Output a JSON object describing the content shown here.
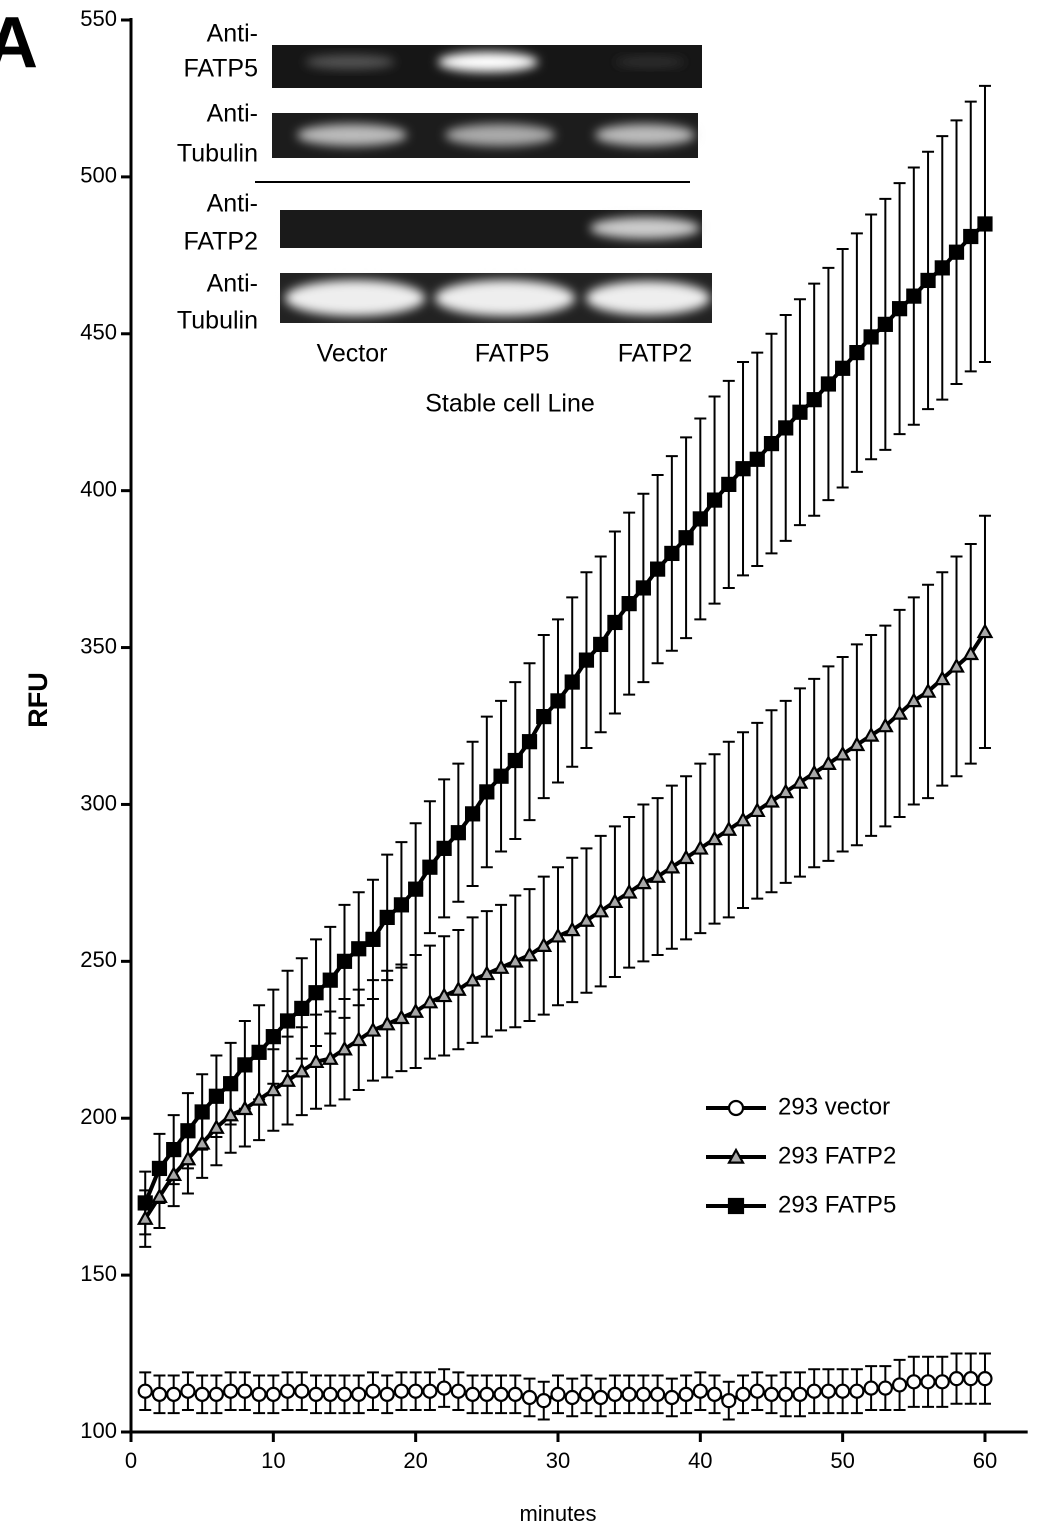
{
  "panel_label": "A",
  "chart_data": {
    "type": "line",
    "xlabel": "minutes",
    "ylabel": "RFU",
    "xlim": [
      0,
      63
    ],
    "ylim": [
      100,
      550
    ],
    "xticks": [
      0,
      10,
      20,
      30,
      40,
      50,
      60
    ],
    "yticks": [
      100,
      150,
      200,
      250,
      300,
      350,
      400,
      450,
      500,
      550
    ],
    "legend": "right",
    "x": [
      1,
      2,
      3,
      4,
      5,
      6,
      7,
      8,
      9,
      10,
      11,
      12,
      13,
      14,
      15,
      16,
      17,
      18,
      19,
      20,
      21,
      22,
      23,
      24,
      25,
      26,
      27,
      28,
      29,
      30,
      31,
      32,
      33,
      34,
      35,
      36,
      37,
      38,
      39,
      40,
      41,
      42,
      43,
      44,
      45,
      46,
      47,
      48,
      49,
      50,
      51,
      52,
      53,
      54,
      55,
      56,
      57,
      58,
      59,
      60
    ],
    "series": [
      {
        "name": "293 vector",
        "marker": "circle",
        "color": "#000000",
        "marker_fill": "#ffffff",
        "values": [
          113,
          112,
          112,
          113,
          112,
          112,
          113,
          113,
          112,
          112,
          113,
          113,
          112,
          112,
          112,
          112,
          113,
          112,
          113,
          113,
          113,
          114,
          113,
          112,
          112,
          112,
          112,
          111,
          110,
          112,
          111,
          112,
          111,
          112,
          112,
          112,
          112,
          111,
          112,
          113,
          112,
          110,
          112,
          113,
          112,
          112,
          112,
          113,
          113,
          113,
          113,
          114,
          114,
          115,
          116,
          116,
          116,
          117,
          117,
          117
        ],
        "errors": [
          6,
          6,
          6,
          6,
          6,
          6,
          6,
          6,
          6,
          6,
          6,
          6,
          6,
          6,
          6,
          6,
          6,
          6,
          6,
          6,
          6,
          6,
          6,
          6,
          6,
          6,
          6,
          6,
          6,
          6,
          6,
          6,
          6,
          6,
          6,
          6,
          6,
          6,
          6,
          6,
          6,
          6,
          6,
          6,
          6,
          7,
          7,
          7,
          7,
          7,
          7,
          7,
          7,
          8,
          8,
          8,
          8,
          8,
          8,
          8
        ]
      },
      {
        "name": "293 FATP2",
        "marker": "triangle",
        "color": "#000000",
        "marker_fill": "#a8a8a8",
        "values": [
          168,
          175,
          182,
          187,
          192,
          197,
          201,
          203,
          206,
          209,
          212,
          215,
          218,
          219,
          222,
          225,
          228,
          230,
          232,
          234,
          237,
          239,
          241,
          244,
          246,
          248,
          250,
          252,
          255,
          258,
          260,
          263,
          266,
          269,
          272,
          275,
          277,
          280,
          283,
          286,
          289,
          292,
          295,
          298,
          301,
          304,
          307,
          310,
          313,
          316,
          319,
          322,
          325,
          329,
          333,
          336,
          340,
          344,
          348,
          355
        ],
        "errors": [
          9,
          10,
          10,
          11,
          11,
          12,
          12,
          12,
          13,
          13,
          14,
          14,
          15,
          15,
          16,
          16,
          16,
          17,
          17,
          18,
          18,
          19,
          19,
          20,
          20,
          20,
          21,
          21,
          22,
          22,
          23,
          23,
          24,
          24,
          24,
          25,
          25,
          26,
          26,
          27,
          27,
          28,
          28,
          28,
          29,
          29,
          30,
          30,
          31,
          31,
          32,
          32,
          32,
          33,
          33,
          34,
          34,
          35,
          35,
          37
        ]
      },
      {
        "name": "293 FATP5",
        "marker": "square",
        "color": "#000000",
        "marker_fill": "#000000",
        "values": [
          173,
          184,
          190,
          196,
          202,
          207,
          211,
          217,
          221,
          226,
          231,
          235,
          240,
          244,
          250,
          254,
          257,
          264,
          268,
          273,
          280,
          286,
          291,
          297,
          304,
          309,
          314,
          320,
          328,
          333,
          339,
          346,
          351,
          358,
          364,
          369,
          375,
          380,
          385,
          391,
          397,
          402,
          407,
          410,
          415,
          420,
          425,
          429,
          434,
          439,
          444,
          449,
          453,
          458,
          462,
          467,
          471,
          476,
          481,
          485
        ],
        "errors": [
          10,
          11,
          11,
          12,
          12,
          13,
          13,
          14,
          15,
          15,
          16,
          16,
          17,
          17,
          18,
          18,
          19,
          20,
          20,
          21,
          21,
          22,
          22,
          23,
          24,
          24,
          25,
          25,
          26,
          26,
          27,
          28,
          28,
          29,
          29,
          30,
          30,
          31,
          32,
          32,
          33,
          33,
          34,
          34,
          35,
          36,
          36,
          37,
          37,
          38,
          38,
          39,
          40,
          40,
          41,
          41,
          42,
          42,
          43,
          44
        ]
      }
    ]
  },
  "inset": {
    "row_labels": [
      [
        "Anti-",
        "FATP5"
      ],
      [
        "Anti-",
        "Tubulin"
      ],
      [
        "Anti-",
        "FATP2"
      ],
      [
        "Anti-",
        "Tubulin"
      ]
    ],
    "lane_labels": [
      "Vector",
      "FATP5",
      "FATP2"
    ],
    "xlabel": "Stable cell Line"
  }
}
